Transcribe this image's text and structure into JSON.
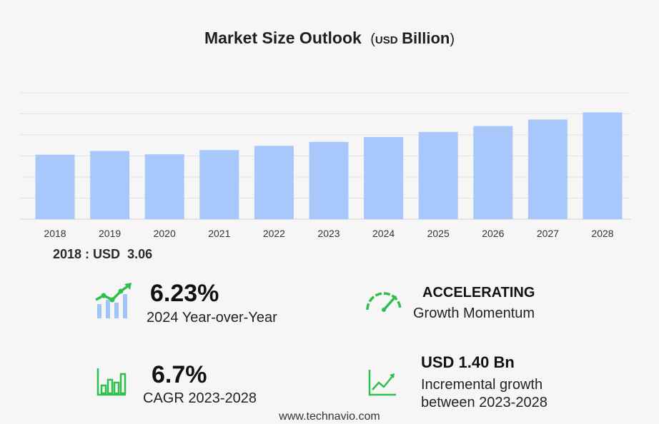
{
  "title": {
    "main": "Market Size Outlook",
    "unit_open": "(",
    "unit_currency": "USD",
    "unit_scale": "Billion",
    "unit_close": ")"
  },
  "chart_data": {
    "type": "bar",
    "title": "Market Size Outlook (USD Billion)",
    "categories": [
      "2018",
      "2019",
      "2020",
      "2021",
      "2022",
      "2023",
      "2024",
      "2025",
      "2026",
      "2027",
      "2028"
    ],
    "values": [
      3.06,
      3.24,
      3.08,
      3.28,
      3.48,
      3.67,
      3.9,
      4.14,
      4.42,
      4.73,
      5.07
    ],
    "ylim": [
      0,
      6.0
    ],
    "grid": true,
    "bar_color": "#a8c8fb"
  },
  "baseline": {
    "label": "2018 : USD",
    "value": "3.06"
  },
  "stats": {
    "yoy": {
      "value": "6.23%",
      "label": "2024 Year-over-Year"
    },
    "momentum": {
      "value": "ACCELERATING",
      "label": "Growth Momentum"
    },
    "cagr": {
      "value": "6.7%",
      "label": "CAGR 2023-2028"
    },
    "incremental": {
      "value": "USD 1.40 Bn",
      "label_line1": "Incremental growth",
      "label_line2": "between 2023-2028"
    }
  },
  "colors": {
    "icon_green": "#2fbf4f",
    "icon_blue": "#9ec4f8",
    "bar": "#a8c8fb",
    "grid": "#e3e3e3"
  },
  "icons": [
    "growth-chart-icon",
    "speedometer-icon",
    "bar-chart-icon",
    "trend-line-icon"
  ],
  "footer": "www.technavio.com"
}
